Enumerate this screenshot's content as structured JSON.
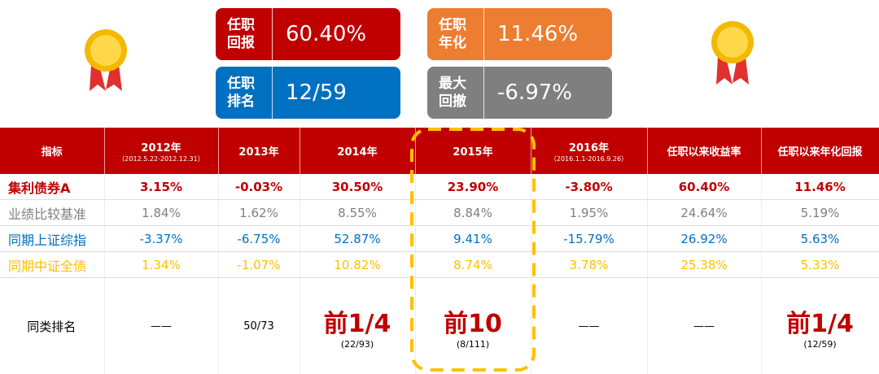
{
  "stats": [
    {
      "label_lines": [
        "任职",
        "回报"
      ],
      "value": "60.40%"
    },
    {
      "label_lines": [
        "任职",
        "年化"
      ],
      "value": "11.46%"
    },
    {
      "label_lines": [
        "任职",
        "排名"
      ],
      "value": "12/59"
    },
    {
      "label_lines": [
        "最大",
        "回撤"
      ],
      "value": "-6.97%"
    }
  ],
  "table": {
    "header": [
      {
        "title": "指标"
      },
      {
        "title": "2012年",
        "sub": "（2012.5.22-2012.12.31）"
      },
      {
        "title": "2013年"
      },
      {
        "title": "2014年"
      },
      {
        "title": "2015年"
      },
      {
        "title": "2016年",
        "sub": "（2016.1.1-2016.9.26）"
      },
      {
        "title": "任职以来收益率"
      },
      {
        "title": "任职以来年化回报"
      }
    ],
    "rows": [
      {
        "name": "集利债券A",
        "cells": [
          "3.15%",
          "-0.03%",
          "30.50%",
          "23.90%",
          "-3.80%",
          "60.40%",
          "11.46%"
        ]
      },
      {
        "name": "业绩比较基准",
        "cells": [
          "1.84%",
          "1.62%",
          "8.55%",
          "8.84%",
          "1.95%",
          "24.64%",
          "5.19%"
        ]
      },
      {
        "name": "同期上证综指",
        "cells": [
          "-3.37%",
          "-6.75%",
          "52.87%",
          "9.41%",
          "-15.79%",
          "26.92%",
          "5.63%"
        ]
      },
      {
        "name": "同期中证全债",
        "cells": [
          "1.34%",
          "-1.07%",
          "10.82%",
          "8.74%",
          "3.78%",
          "25.38%",
          "5.33%"
        ]
      }
    ],
    "ranking": {
      "name": "同类排名",
      "cells": [
        {
          "main": "——"
        },
        {
          "main": "50/73"
        },
        {
          "main": "前1/4",
          "sub": "(22/93)"
        },
        {
          "main": "前10",
          "sub": "(8/111)"
        },
        {
          "main": "——"
        },
        {
          "main": "——"
        },
        {
          "main": "前1/4",
          "sub": "(12/59)"
        }
      ]
    }
  }
}
